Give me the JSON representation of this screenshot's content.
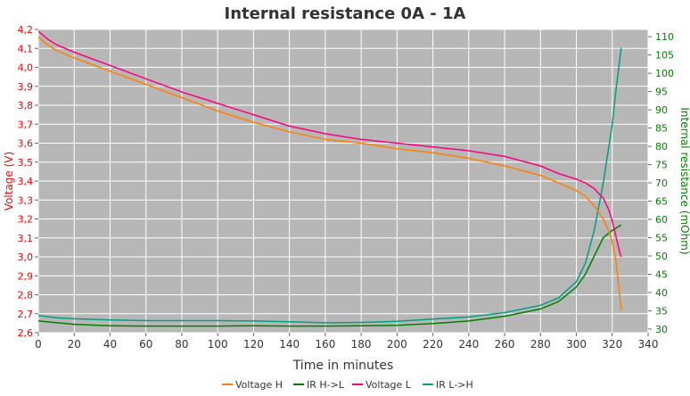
{
  "chart_data": {
    "type": "line",
    "title": "Internal resistance  0A - 1A",
    "xlabel": "Time in minutes",
    "ylabel_left": "Voltage (V)",
    "ylabel_right": "Internal resistance (mOhm)",
    "xlim": [
      0,
      340
    ],
    "ylim_left": [
      2.6,
      4.2
    ],
    "ylim_right": [
      29,
      112
    ],
    "x_ticks": [
      0,
      20,
      40,
      60,
      80,
      100,
      120,
      140,
      160,
      180,
      200,
      220,
      240,
      260,
      280,
      300,
      320,
      340
    ],
    "y_left_ticks": [
      "4,2",
      "4,1",
      "4,0",
      "3,9",
      "3,8",
      "3,7",
      "3,6",
      "3,5",
      "3,4",
      "3,3",
      "3,2",
      "3,1",
      "3,0",
      "2,9",
      "2,8",
      "2,7",
      "2,6"
    ],
    "y_left_values": [
      4.2,
      4.1,
      4.0,
      3.9,
      3.8,
      3.7,
      3.6,
      3.5,
      3.4,
      3.3,
      3.2,
      3.1,
      3.0,
      2.9,
      2.8,
      2.7,
      2.6
    ],
    "y_right_ticks": [
      110,
      105,
      100,
      95,
      90,
      85,
      80,
      75,
      70,
      65,
      60,
      55,
      50,
      45,
      40,
      35,
      30
    ],
    "grid": true,
    "legend_position": "bottom",
    "plot_background": "#b7b7b7",
    "colors": {
      "voltage_h": "#ff8000",
      "ir_hl": "#008000",
      "voltage_l": "#ff0080",
      "ir_lh": "#00a080",
      "left_axis": "#ff0000",
      "right_axis": "#008000"
    },
    "series": [
      {
        "name": "Voltage H",
        "axis": "left",
        "color": "#ff8000",
        "x": [
          0,
          5,
          10,
          20,
          40,
          60,
          80,
          100,
          120,
          140,
          160,
          180,
          200,
          220,
          240,
          260,
          280,
          290,
          300,
          305,
          310,
          315,
          318,
          320,
          322,
          324,
          325
        ],
        "y": [
          4.16,
          4.12,
          4.09,
          4.05,
          3.98,
          3.91,
          3.84,
          3.77,
          3.71,
          3.66,
          3.62,
          3.6,
          3.57,
          3.55,
          3.52,
          3.48,
          3.43,
          3.39,
          3.35,
          3.32,
          3.27,
          3.2,
          3.14,
          3.08,
          2.98,
          2.82,
          2.72
        ]
      },
      {
        "name": "IR H->L",
        "axis": "right",
        "color": "#008000",
        "x": [
          0,
          20,
          40,
          60,
          80,
          100,
          120,
          140,
          160,
          180,
          200,
          220,
          240,
          260,
          280,
          290,
          300,
          305,
          310,
          315,
          320,
          325
        ],
        "y": [
          32.2,
          31.3,
          30.9,
          30.8,
          30.8,
          30.8,
          30.9,
          30.8,
          30.8,
          30.9,
          31.0,
          31.5,
          32.2,
          33.5,
          35.5,
          37.5,
          41.5,
          45.0,
          50.0,
          55.0,
          57.0,
          58.5
        ]
      },
      {
        "name": "Voltage L",
        "axis": "left",
        "color": "#ff0080",
        "x": [
          0,
          5,
          10,
          20,
          40,
          60,
          80,
          100,
          120,
          140,
          160,
          180,
          200,
          220,
          240,
          260,
          280,
          290,
          300,
          305,
          310,
          315,
          318,
          320,
          322,
          324,
          325
        ],
        "y": [
          4.19,
          4.15,
          4.12,
          4.08,
          4.01,
          3.94,
          3.87,
          3.81,
          3.75,
          3.69,
          3.65,
          3.62,
          3.6,
          3.58,
          3.56,
          3.53,
          3.48,
          3.44,
          3.41,
          3.39,
          3.36,
          3.31,
          3.25,
          3.19,
          3.11,
          3.03,
          3.0
        ]
      },
      {
        "name": "IR L->H",
        "axis": "right",
        "color": "#00a080",
        "x": [
          0,
          10,
          20,
          40,
          60,
          80,
          100,
          120,
          140,
          160,
          180,
          200,
          220,
          240,
          260,
          280,
          290,
          300,
          305,
          310,
          315,
          320,
          322,
          325
        ],
        "y": [
          33.7,
          33.1,
          32.8,
          32.5,
          32.3,
          32.3,
          32.3,
          32.2,
          32.0,
          31.7,
          31.8,
          32.1,
          32.7,
          33.3,
          34.5,
          36.5,
          38.5,
          43.0,
          48.0,
          57.0,
          70.0,
          86.0,
          95.0,
          107.0
        ]
      }
    ]
  }
}
